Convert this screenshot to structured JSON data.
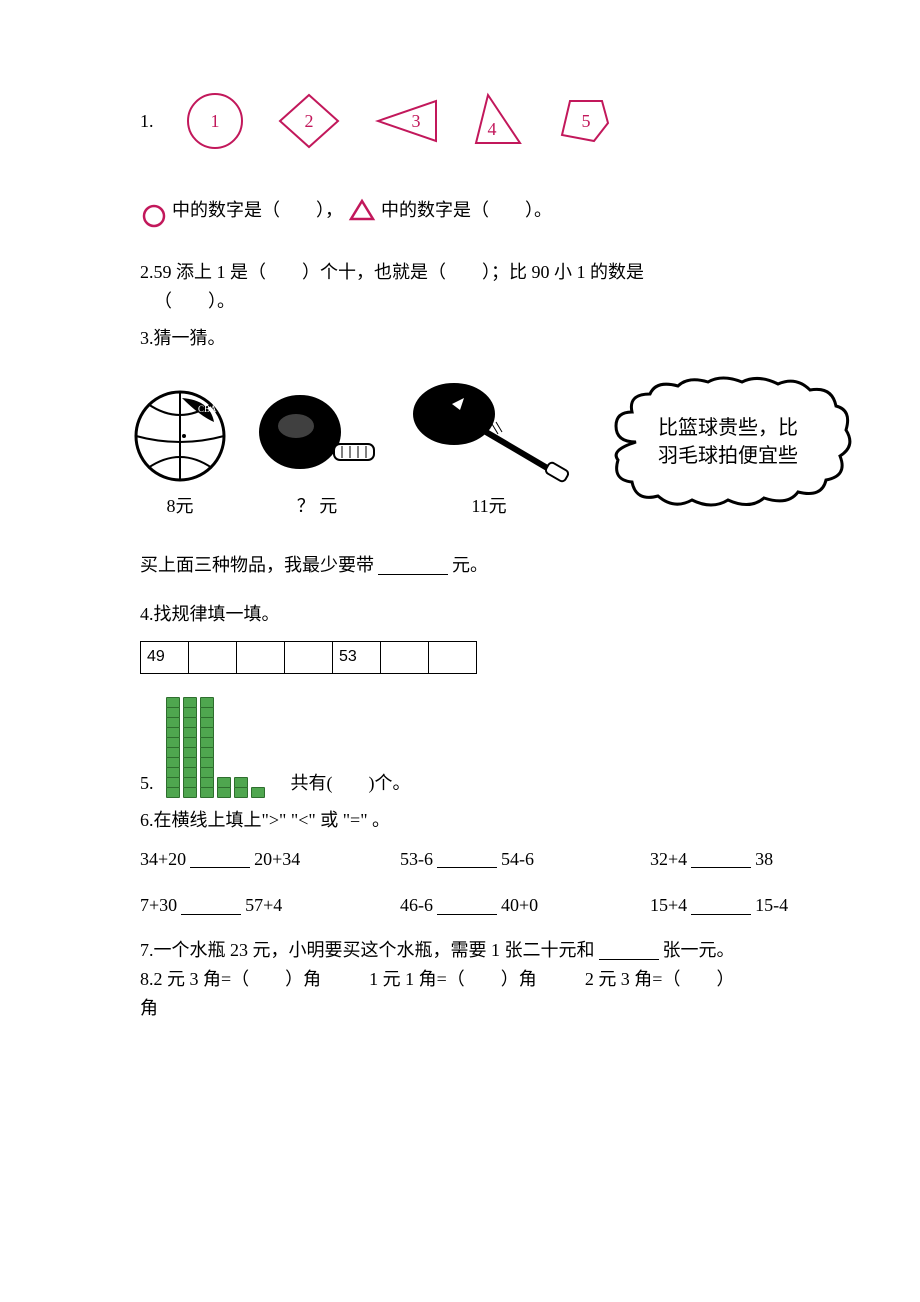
{
  "colors": {
    "shape_stroke": "#c2185b",
    "text": "#000000",
    "cube_fill": "#4fa64f",
    "cube_border": "#2e6e2e",
    "background": "#ffffff"
  },
  "q1": {
    "num": "1.",
    "shapes": [
      {
        "type": "circle",
        "label": "1"
      },
      {
        "type": "diamond",
        "label": "2"
      },
      {
        "type": "triangle_w",
        "label": "3"
      },
      {
        "type": "triangle_n",
        "label": "4"
      },
      {
        "type": "pentagon",
        "label": "5"
      }
    ],
    "line_a": "中的数字是（　　），",
    "line_b": "中的数字是（　　）。"
  },
  "q2": {
    "text_a": "2.59 添上 1 是（　　）个十，也就是（　　）；比 90 小 1 的数是",
    "text_b": "（　　）。"
  },
  "q3": {
    "title": "3.猜一猜。",
    "items": [
      {
        "type": "basketball",
        "label": "8元"
      },
      {
        "type": "paddle",
        "label": "？ 元"
      },
      {
        "type": "racket",
        "label": "11元"
      }
    ],
    "cloud_l1": "比篮球贵些，比",
    "cloud_l2": "羽毛球拍便宜些",
    "buy_a": "买上面三种物品，我最少要带",
    "buy_b": "元。"
  },
  "q4": {
    "title": "4.找规律填一填。",
    "cells": [
      "49",
      "",
      "",
      "",
      "53",
      "",
      ""
    ]
  },
  "q5": {
    "num": "5.",
    "bars": [
      10,
      10,
      10,
      2,
      2,
      1
    ],
    "text_a": "共有(　　)个。"
  },
  "q6": {
    "title": "6.在横线上填上\">\" \"<\" 或 \"=\" 。",
    "rows": [
      [
        {
          "l": "34+20",
          "r": "20+34"
        },
        {
          "l": "53-6",
          "r": "54-6"
        },
        {
          "l": "32+4",
          "r": "38"
        }
      ],
      [
        {
          "l": "7+30",
          "r": "57+4"
        },
        {
          "l": "46-6",
          "r": "40+0"
        },
        {
          "l": "15+4",
          "r": "15-4"
        }
      ]
    ]
  },
  "q7": {
    "text_a": "7.一个水瓶 23 元，小明要买这个水瓶，需要 1 张二十元和",
    "text_b": "张一元。"
  },
  "q8": {
    "a": "8.2 元 3 角=（　　）角",
    "b": "1 元 1 角=（　　）角",
    "c": "2 元 3 角=（　　）",
    "d": "角"
  }
}
